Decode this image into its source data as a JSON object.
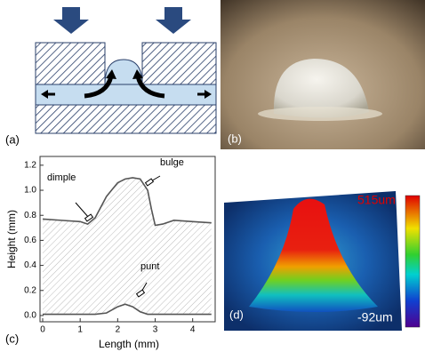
{
  "panels": {
    "a": "(a)",
    "b": "(b)",
    "c": "(c)",
    "d": "(d)"
  },
  "colorbar": {
    "max_label": "515um",
    "min_label": "-92um"
  },
  "chart_data": {
    "type": "line",
    "xlabel": "Length (mm)",
    "ylabel": "Height (mm)",
    "x": [
      0,
      0.5,
      1,
      1.2,
      1.4,
      1.7,
      2,
      2.2,
      2.4,
      2.6,
      2.8,
      2.9,
      3,
      3.2,
      3.5,
      4,
      4.5
    ],
    "series": [
      {
        "color": "#555555",
        "values": [
          0.77,
          0.76,
          0.75,
          0.73,
          0.78,
          0.95,
          1.06,
          1.09,
          1.1,
          1.09,
          1.0,
          0.85,
          0.72,
          0.73,
          0.76,
          0.75,
          0.74
        ]
      },
      {
        "color": "#555555",
        "values": [
          0.01,
          0.01,
          0.01,
          0.01,
          0.01,
          0.02,
          0.07,
          0.09,
          0.07,
          0.03,
          0.01,
          0.01,
          0.01,
          0.01,
          0.01,
          0.01,
          0.01
        ]
      }
    ],
    "annotations": [
      "dimple",
      "bulge",
      "punt"
    ],
    "xlim": [
      0,
      4.6
    ],
    "ylim": [
      -0.05,
      1.27
    ],
    "xticks": [
      0,
      1,
      2,
      3,
      4
    ],
    "yticks": [
      {
        "value": 0,
        "label": "0.0"
      },
      {
        "value": 0.2,
        "label": "0.2"
      },
      {
        "value": 0.4,
        "label": "0.4"
      },
      {
        "value": 0.6,
        "label": "0.6"
      },
      {
        "value": 0.8,
        "label": "0.8"
      },
      {
        "value": 1.0,
        "label": "1.0"
      },
      {
        "value": 1.2,
        "label": "1.2"
      }
    ]
  }
}
